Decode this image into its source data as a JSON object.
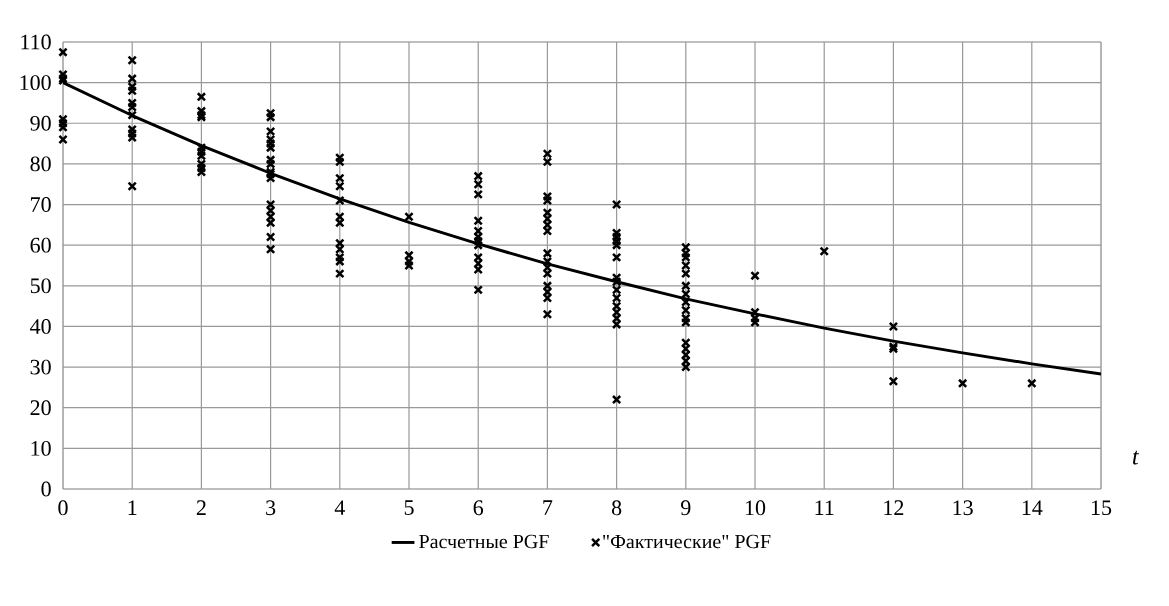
{
  "chart_data": {
    "type": "scatter",
    "xlabel": "t",
    "xlim": [
      0,
      15
    ],
    "ylim": [
      0,
      110
    ],
    "xticks": [
      0,
      1,
      2,
      3,
      4,
      5,
      6,
      7,
      8,
      9,
      10,
      11,
      12,
      13,
      14,
      15
    ],
    "yticks": [
      0,
      10,
      20,
      30,
      40,
      50,
      60,
      70,
      80,
      90,
      100,
      110
    ],
    "grid": true,
    "legend": "bottom",
    "series": [
      {
        "name": "Расчетные PGF",
        "type": "line",
        "color": "#000000",
        "line_style": "solid",
        "x": [
          0,
          1,
          2,
          3,
          4,
          5,
          6,
          7,
          8,
          9,
          10,
          11,
          12,
          13,
          14,
          15
        ],
        "values": [
          100,
          91.9,
          84.5,
          77.7,
          71.4,
          65.6,
          60.3,
          55.4,
          51.0,
          46.8,
          43.1,
          39.6,
          36.4,
          33.5,
          30.8,
          28.3
        ]
      },
      {
        "name": "\"Фактические\"  PGF",
        "marker": "cross",
        "color": "#000000",
        "x": [
          0,
          0,
          0,
          0,
          0,
          0,
          0,
          0,
          1,
          1,
          1,
          1,
          1,
          1,
          1,
          1,
          1,
          1,
          1,
          2,
          2,
          2,
          2,
          2,
          2,
          2,
          2,
          2,
          2,
          3,
          3,
          3,
          3,
          3,
          3,
          3,
          3,
          3,
          3,
          3,
          3,
          3,
          3,
          3,
          3,
          3,
          4,
          4,
          4,
          4,
          4,
          4,
          4,
          4,
          4,
          4,
          4,
          4,
          5,
          5,
          5,
          5,
          6,
          6,
          6,
          6,
          6,
          6,
          6,
          6,
          6,
          6,
          6,
          6,
          7,
          7,
          7,
          7,
          7,
          7,
          7,
          7,
          7,
          7,
          7,
          7,
          7,
          7,
          7,
          7,
          8,
          8,
          8,
          8,
          8,
          8,
          8,
          8,
          8,
          8,
          8,
          8,
          8,
          8,
          8,
          9,
          9,
          9,
          9,
          9,
          9,
          9,
          9,
          9,
          9,
          9,
          9,
          9,
          9,
          9,
          9,
          10,
          10,
          10,
          10,
          11,
          12,
          12,
          12,
          12,
          13,
          14
        ],
        "values": [
          107.5,
          102,
          101,
          100.5,
          91,
          90,
          89,
          86,
          105.5,
          101,
          99,
          98,
          95,
          94,
          92,
          88.5,
          87.5,
          86.5,
          74.5,
          96.5,
          93,
          92,
          91.5,
          84,
          83,
          82,
          80,
          79,
          78,
          92.5,
          91.5,
          88,
          86,
          85,
          84,
          81,
          80,
          78,
          77.5,
          76.5,
          70,
          68.5,
          67,
          65.5,
          62,
          59,
          81.5,
          80.5,
          76.5,
          74.5,
          71,
          67,
          65.5,
          60.5,
          59,
          57,
          56,
          53,
          67,
          57.5,
          56,
          55,
          77,
          75,
          72.5,
          66,
          63.5,
          62,
          61,
          60,
          57,
          55.5,
          54,
          49,
          82.5,
          80.5,
          72,
          71,
          68,
          66.5,
          65,
          63.5,
          58,
          56,
          54.5,
          53,
          50,
          48.5,
          47,
          43,
          70,
          63,
          62,
          61,
          60,
          57,
          52,
          51,
          49,
          47,
          45,
          43.5,
          42,
          40.5,
          22,
          59.5,
          58,
          57,
          55,
          53,
          50,
          48,
          46,
          44,
          42,
          41,
          36,
          34.5,
          33,
          31.5,
          30,
          52.5,
          43.5,
          42,
          41,
          58.5,
          40,
          35,
          34.5,
          26.5,
          26,
          26
        ]
      }
    ]
  }
}
